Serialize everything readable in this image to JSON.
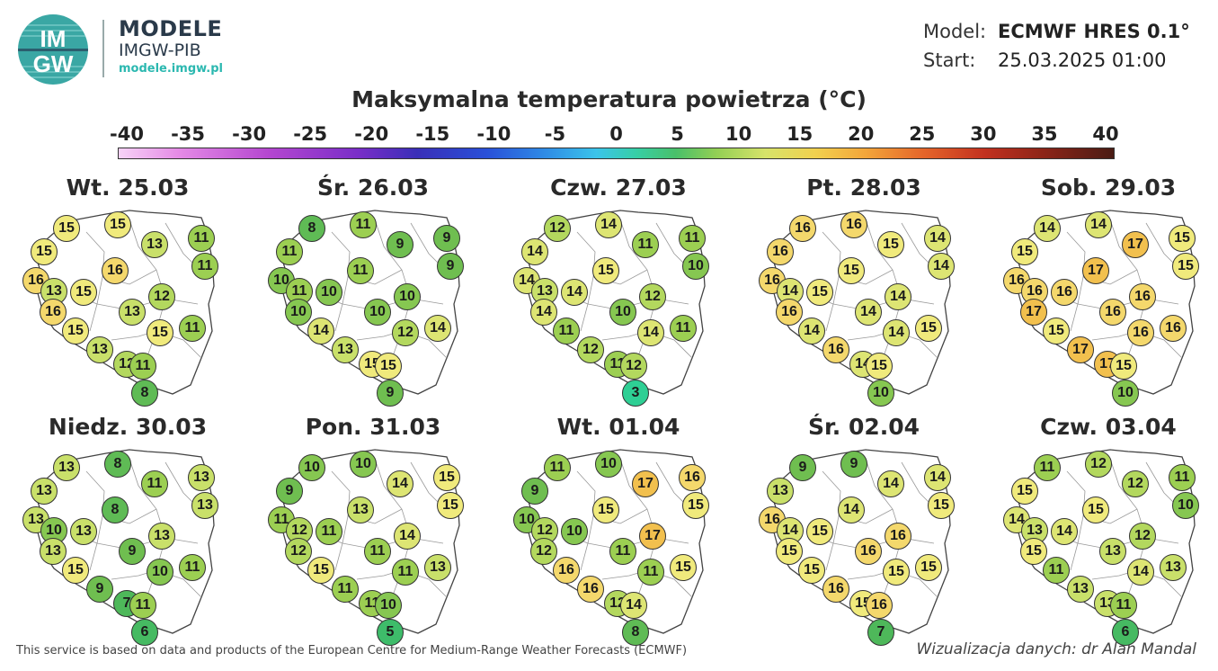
{
  "brand": {
    "logo_text_top": "IM",
    "logo_text_bottom": "GW",
    "title": "MODELE",
    "subtitle": "IMGW-PIB",
    "url": "modele.imgw.pl"
  },
  "meta": {
    "model_label": "Model:",
    "model_value": "ECMWF HRES 0.1°",
    "start_label": "Start:",
    "start_value": "25.03.2025 01:00"
  },
  "title": "Maksymalna temperatura powietrza (°C)",
  "colorbar": {
    "ticks": [
      -40,
      -35,
      -30,
      -25,
      -20,
      -15,
      -10,
      -5,
      0,
      5,
      10,
      15,
      20,
      25,
      30,
      35,
      40
    ],
    "min": -40,
    "max": 40
  },
  "days": [
    {
      "label": "Wt. 25.03",
      "values": [
        15,
        15,
        15,
        13,
        11,
        16,
        16,
        11,
        15,
        13,
        12,
        16,
        13,
        11,
        15,
        15,
        13,
        12,
        11,
        8
      ]
    },
    {
      "label": "Śr. 26.03",
      "values": [
        11,
        8,
        11,
        9,
        9,
        10,
        11,
        9,
        10,
        11,
        10,
        10,
        10,
        14,
        14,
        12,
        13,
        15,
        15,
        9
      ]
    },
    {
      "label": "Czw. 27.03",
      "values": [
        14,
        12,
        14,
        11,
        11,
        14,
        15,
        10,
        14,
        13,
        12,
        14,
        10,
        11,
        11,
        14,
        12,
        11,
        12,
        3
      ]
    },
    {
      "label": "Pt. 28.03",
      "values": [
        16,
        16,
        16,
        15,
        14,
        16,
        15,
        14,
        15,
        14,
        14,
        16,
        14,
        15,
        14,
        14,
        16,
        14,
        15,
        10
      ]
    },
    {
      "label": "Sob. 29.03",
      "values": [
        15,
        14,
        14,
        17,
        15,
        16,
        17,
        15,
        16,
        16,
        16,
        17,
        16,
        16,
        15,
        16,
        17,
        17,
        15,
        10
      ]
    },
    {
      "label": "Niedz. 30.03",
      "values": [
        13,
        13,
        8,
        11,
        13,
        13,
        8,
        13,
        13,
        10,
        13,
        13,
        9,
        11,
        15,
        10,
        9,
        7,
        11,
        6
      ]
    },
    {
      "label": "Pon. 31.03",
      "values": [
        9,
        10,
        10,
        14,
        15,
        11,
        13,
        15,
        11,
        12,
        14,
        12,
        11,
        13,
        15,
        11,
        11,
        11,
        10,
        5
      ]
    },
    {
      "label": "Wt. 01.04",
      "values": [
        9,
        11,
        10,
        17,
        16,
        10,
        15,
        15,
        10,
        12,
        17,
        12,
        11,
        15,
        16,
        11,
        16,
        12,
        14,
        8
      ]
    },
    {
      "label": "Śr. 02.04",
      "values": [
        13,
        9,
        9,
        14,
        14,
        16,
        14,
        15,
        15,
        14,
        16,
        15,
        16,
        15,
        15,
        15,
        16,
        15,
        16,
        7
      ]
    },
    {
      "label": "Czw. 03.04",
      "values": [
        15,
        11,
        12,
        12,
        11,
        14,
        15,
        10,
        14,
        13,
        12,
        15,
        13,
        13,
        11,
        14,
        13,
        13,
        11,
        6
      ]
    }
  ],
  "footer": {
    "left": "This service is based on data and products of the European Centre for Medium-Range Weather Forecasts (ECMWF)",
    "right": "Wizualizacja danych: dr Alan Mandal"
  }
}
